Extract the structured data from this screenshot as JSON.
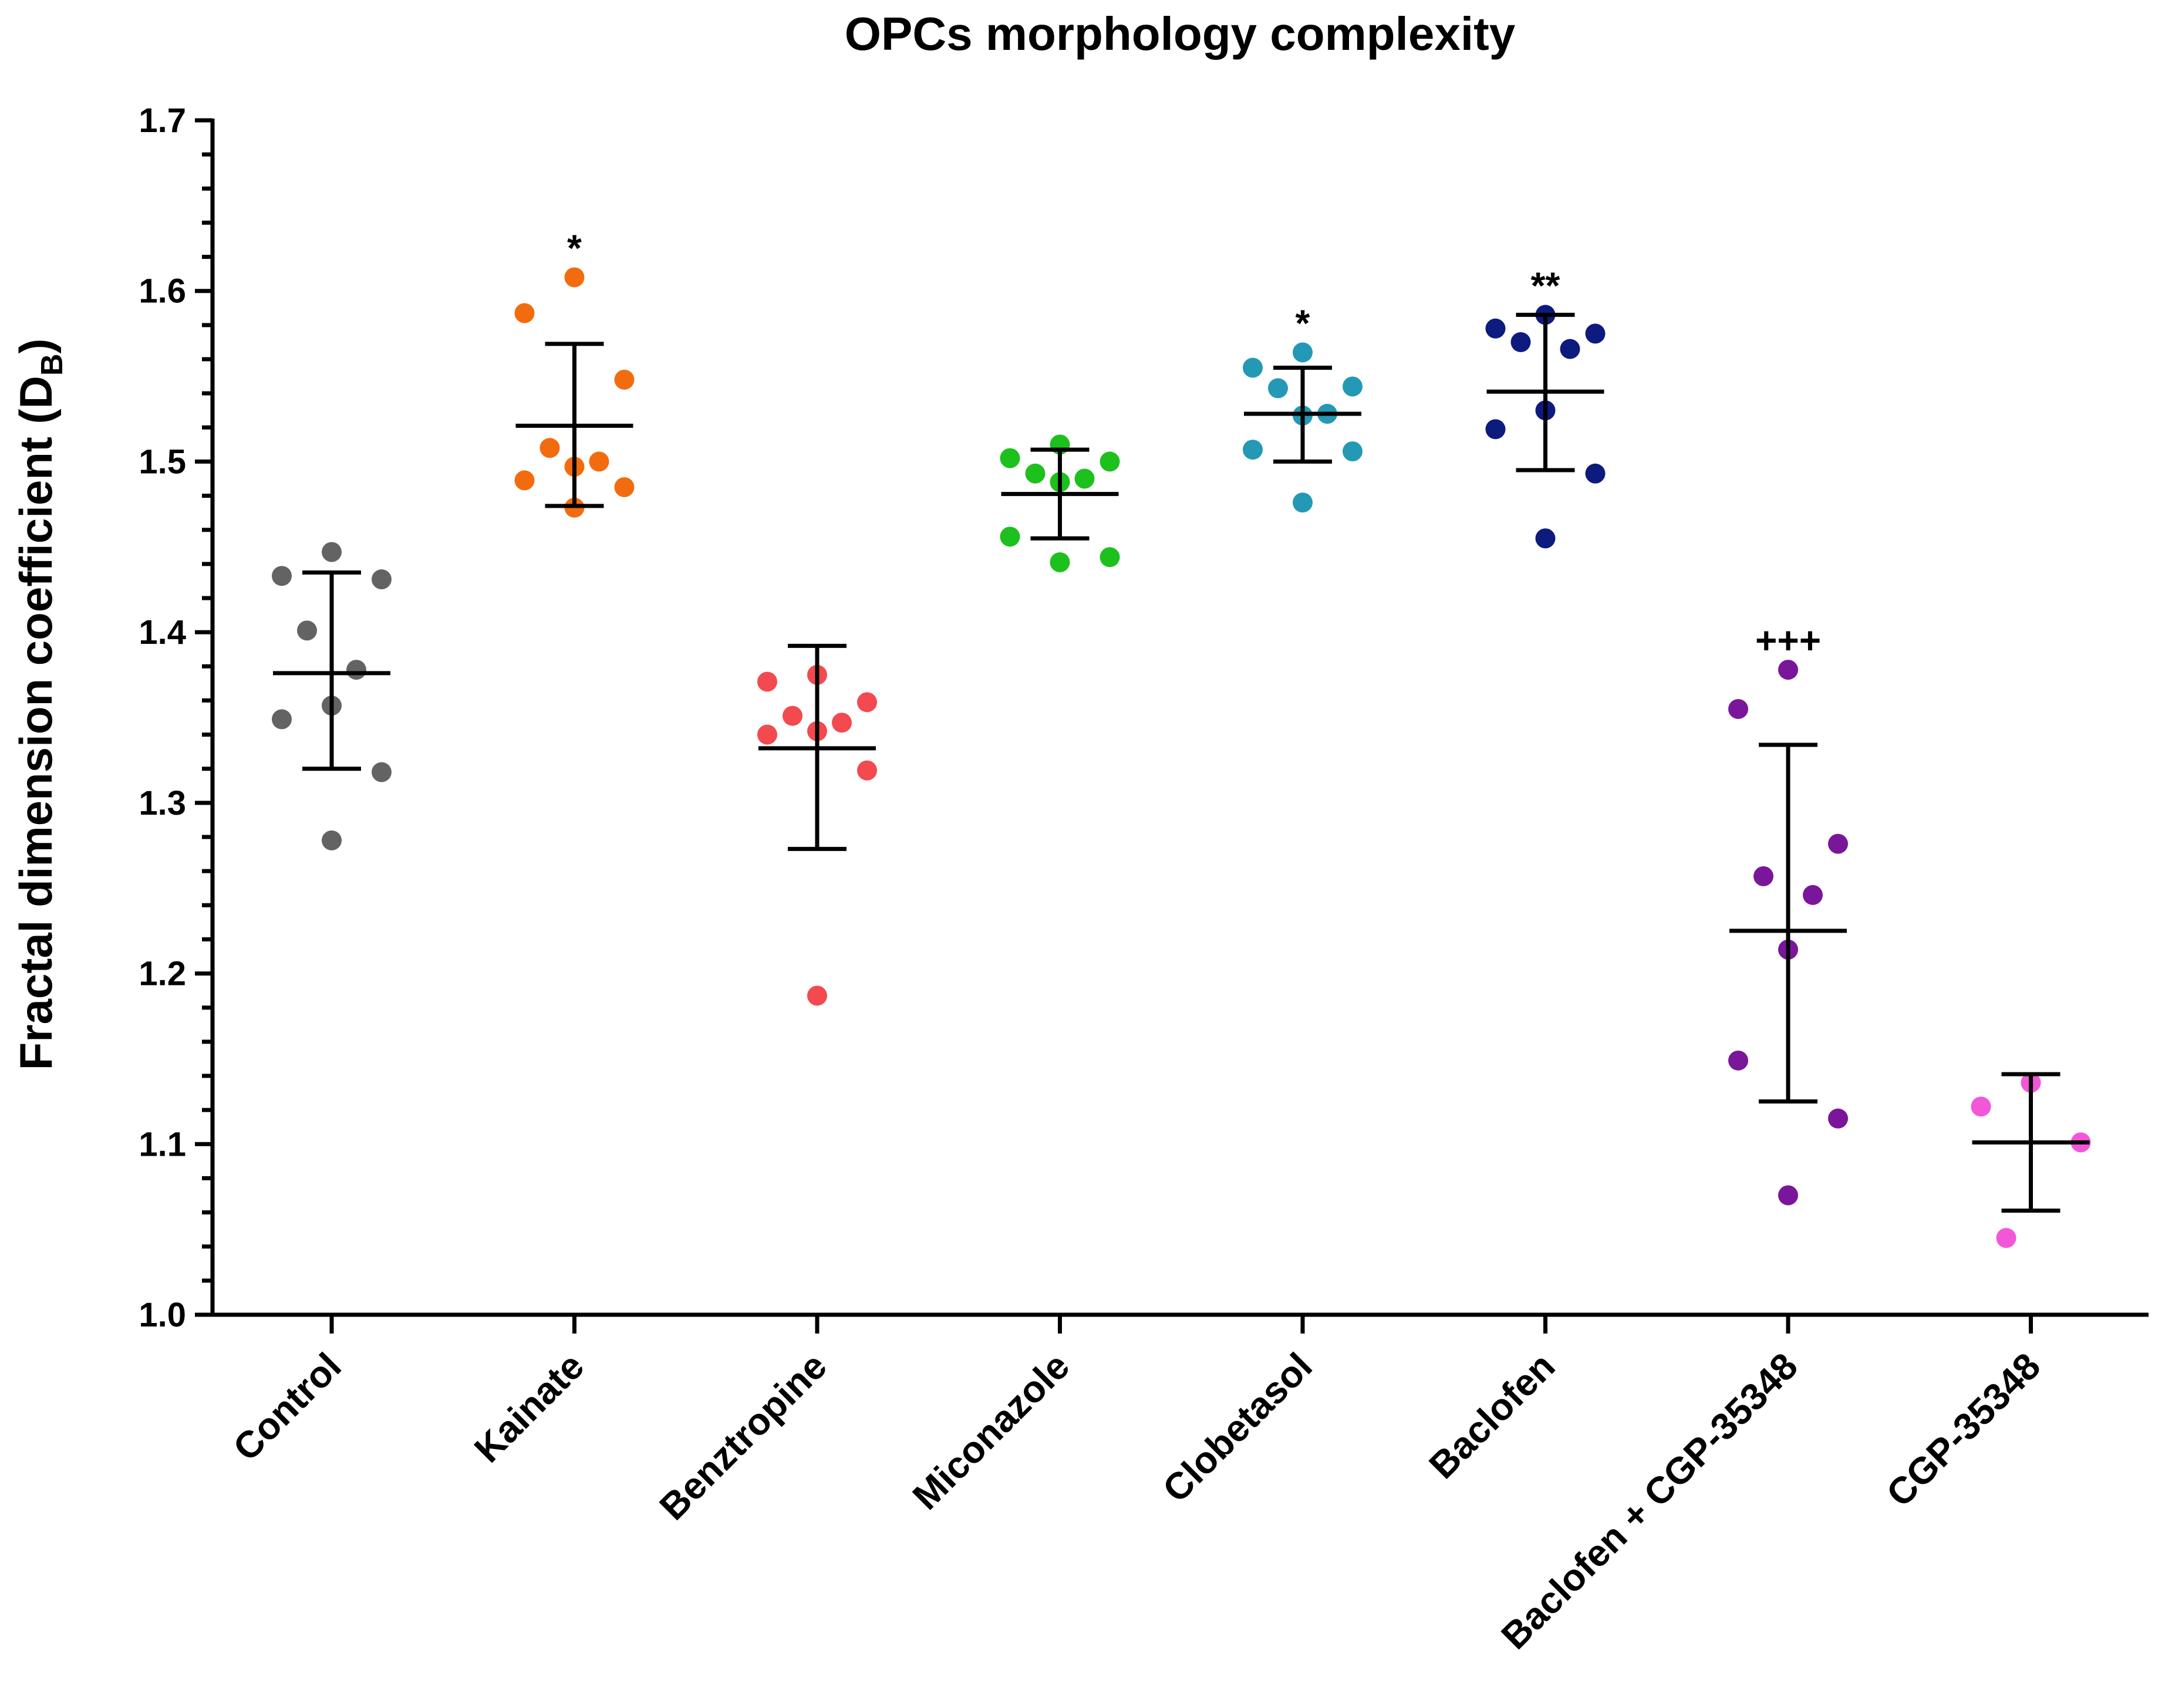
{
  "chart_data": {
    "type": "scatter",
    "title": "OPCs morphology complexity",
    "ylabel": "Fractal dimension coefficient (D",
    "ylabel_subscript": "B",
    "ylabel_close": ")",
    "xlabel": "",
    "ylim": [
      1.0,
      1.7
    ],
    "yticks": [
      "1.0",
      "1.1",
      "1.2",
      "1.3",
      "1.4",
      "1.5",
      "1.6",
      "1.7"
    ],
    "minor_ticks_per_major": 5,
    "grid": false,
    "categories": [
      "Control",
      "Kainate",
      "Benztropine",
      "Miconazole",
      "Clobetasol",
      "Baclofen",
      "Baclofen + CGP-35348",
      "CGP-35348"
    ],
    "series": [
      {
        "category": "Control",
        "color": "#636363",
        "points": [
          1.447,
          1.433,
          1.431,
          1.401,
          1.378,
          1.357,
          1.349,
          1.318,
          1.278
        ],
        "mean": 1.376,
        "err_upper": 1.435,
        "err_lower": 1.32,
        "annotation": ""
      },
      {
        "category": "Kainate",
        "color": "#f26c0f",
        "points": [
          1.608,
          1.587,
          1.548,
          1.508,
          1.5,
          1.497,
          1.489,
          1.485,
          1.473
        ],
        "mean": 1.521,
        "err_upper": 1.569,
        "err_lower": 1.474,
        "annotation": "*"
      },
      {
        "category": "Benztropine",
        "color": "#f24a4e",
        "points": [
          1.375,
          1.371,
          1.359,
          1.351,
          1.347,
          1.342,
          1.34,
          1.319,
          1.187
        ],
        "mean": 1.332,
        "err_upper": 1.392,
        "err_lower": 1.273,
        "annotation": ""
      },
      {
        "category": "Miconazole",
        "color": "#1dc01d",
        "points": [
          1.51,
          1.502,
          1.5,
          1.493,
          1.49,
          1.488,
          1.456,
          1.444,
          1.441
        ],
        "mean": 1.481,
        "err_upper": 1.507,
        "err_lower": 1.455,
        "annotation": ""
      },
      {
        "category": "Clobetasol",
        "color": "#2399b5",
        "points": [
          1.564,
          1.555,
          1.544,
          1.543,
          1.528,
          1.527,
          1.507,
          1.506,
          1.476
        ],
        "mean": 1.528,
        "err_upper": 1.555,
        "err_lower": 1.5,
        "annotation": "*"
      },
      {
        "category": "Baclofen",
        "color": "#0d1a7e",
        "points": [
          1.586,
          1.578,
          1.575,
          1.57,
          1.566,
          1.53,
          1.519,
          1.493,
          1.455
        ],
        "mean": 1.541,
        "err_upper": 1.586,
        "err_lower": 1.495,
        "annotation": "**"
      },
      {
        "category": "Baclofen + CGP-35348",
        "color": "#7a169a",
        "points": [
          1.378,
          1.355,
          1.276,
          1.257,
          1.246,
          1.214,
          1.149,
          1.115,
          1.07
        ],
        "mean": 1.225,
        "err_upper": 1.334,
        "err_lower": 1.125,
        "annotation": "+++"
      },
      {
        "category": "CGP-35348",
        "color": "#f257d8",
        "points": [
          1.136,
          1.122,
          1.101,
          1.045
        ],
        "mean": 1.101,
        "err_upper": 1.141,
        "err_lower": 1.061,
        "annotation": ""
      }
    ]
  }
}
